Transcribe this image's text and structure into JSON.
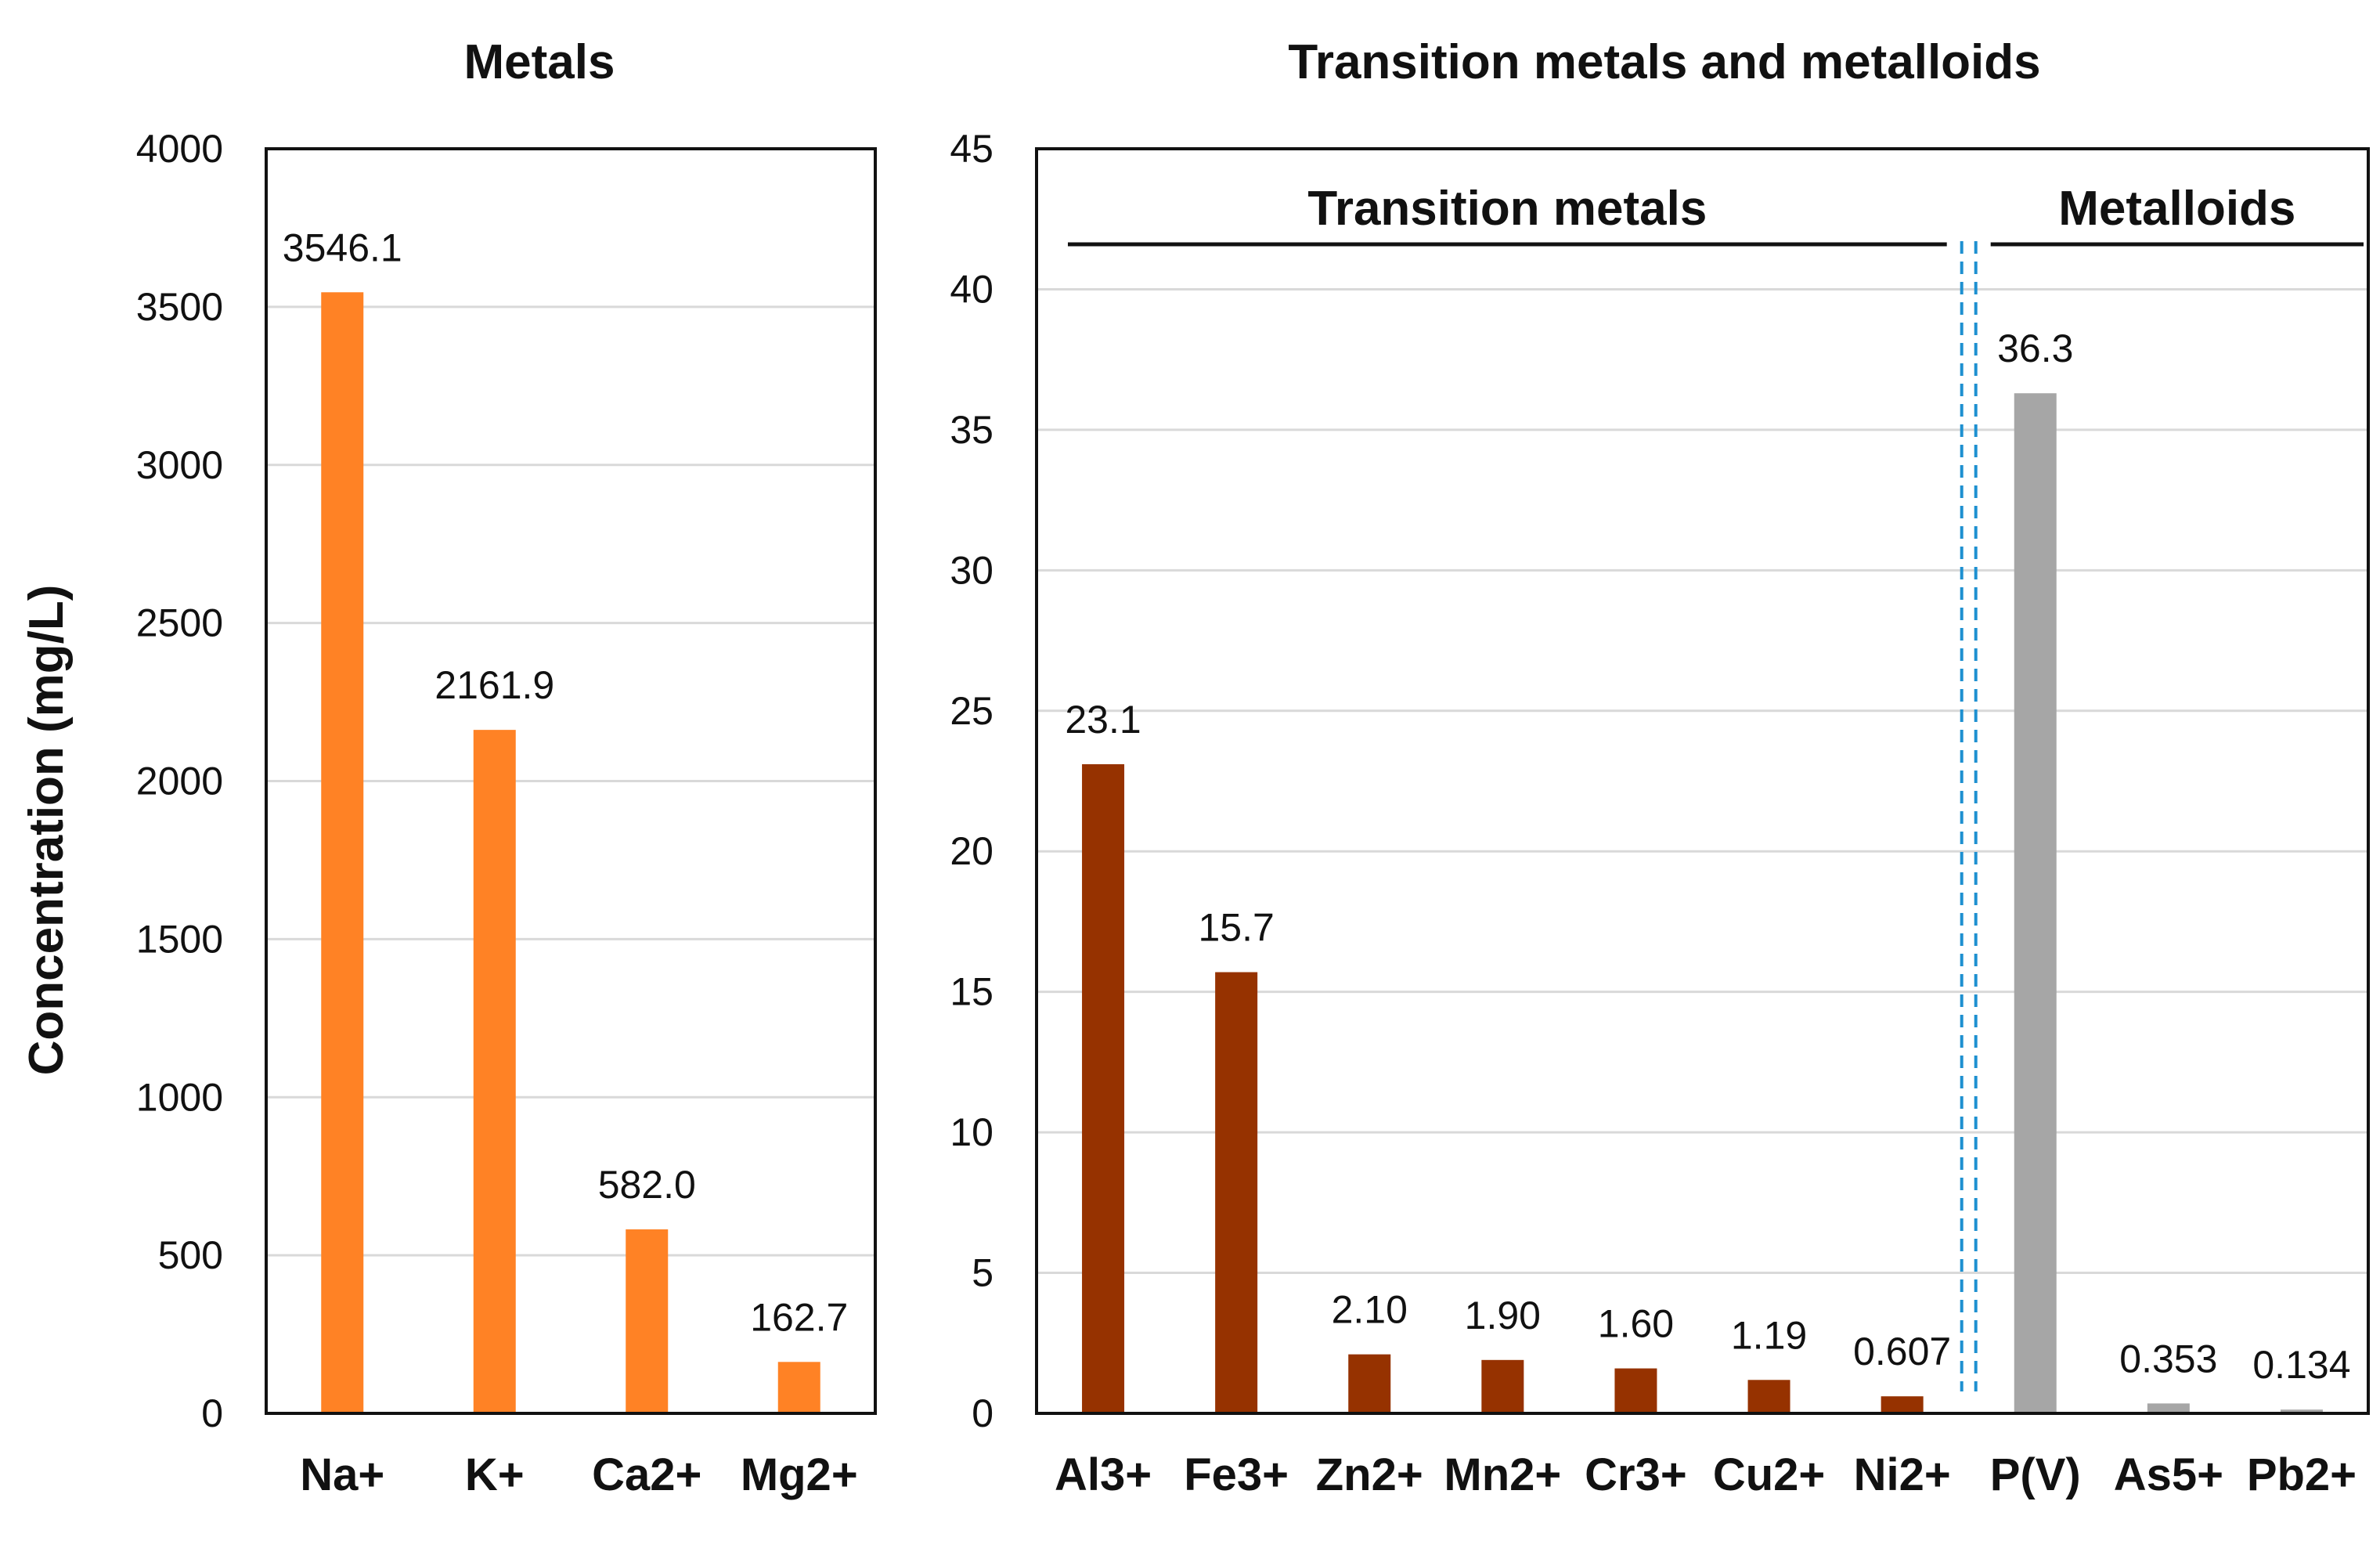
{
  "y_axis_label": "Concentration (mg/L)",
  "chart_data": [
    {
      "type": "bar",
      "title": "Metals",
      "categories": [
        "Na+",
        "K+",
        "Ca2+",
        "Mg2+"
      ],
      "values": [
        3546.1,
        2161.9,
        582.0,
        162.7
      ],
      "data_labels": [
        "3546.1",
        "2161.9",
        "582.0",
        "162.7"
      ],
      "colors": [
        "#FF8225",
        "#FF8225",
        "#FF8225",
        "#FF8225"
      ],
      "ylim": [
        0,
        4000
      ],
      "yticks": [
        0,
        500,
        1000,
        1500,
        2000,
        2500,
        3000,
        3500,
        4000
      ],
      "ylabel": "Concentration (mg/L)",
      "grid": true
    },
    {
      "type": "bar",
      "title": "Transition metals and metalloids",
      "categories": [
        "Al3+",
        "Fe3+",
        "Zn2+",
        "Mn2+",
        "Cr3+",
        "Cu2+",
        "Ni2+",
        "P(V)",
        "As5+",
        "Pb2+"
      ],
      "values": [
        23.1,
        15.7,
        2.1,
        1.9,
        1.6,
        1.19,
        0.607,
        36.3,
        0.353,
        0.134
      ],
      "data_labels": [
        "23.1",
        "15.7",
        "2.10",
        "1.90",
        "1.60",
        "1.19",
        "0.607",
        "36.3",
        "0.353",
        "0.134"
      ],
      "colors": [
        "#963200",
        "#963200",
        "#963200",
        "#963200",
        "#963200",
        "#963200",
        "#963200",
        "#A6A6A6",
        "#A6A6A6",
        "#A6A6A6"
      ],
      "ylim": [
        0,
        45
      ],
      "yticks": [
        0,
        5,
        10,
        15,
        20,
        25,
        30,
        35,
        40,
        45
      ],
      "grid": true,
      "groups": [
        {
          "label": "Transition metals",
          "from": 0,
          "to": 6
        },
        {
          "label": "Metalloids",
          "from": 7,
          "to": 9
        }
      ],
      "separator_color": "#1E90D0"
    }
  ]
}
